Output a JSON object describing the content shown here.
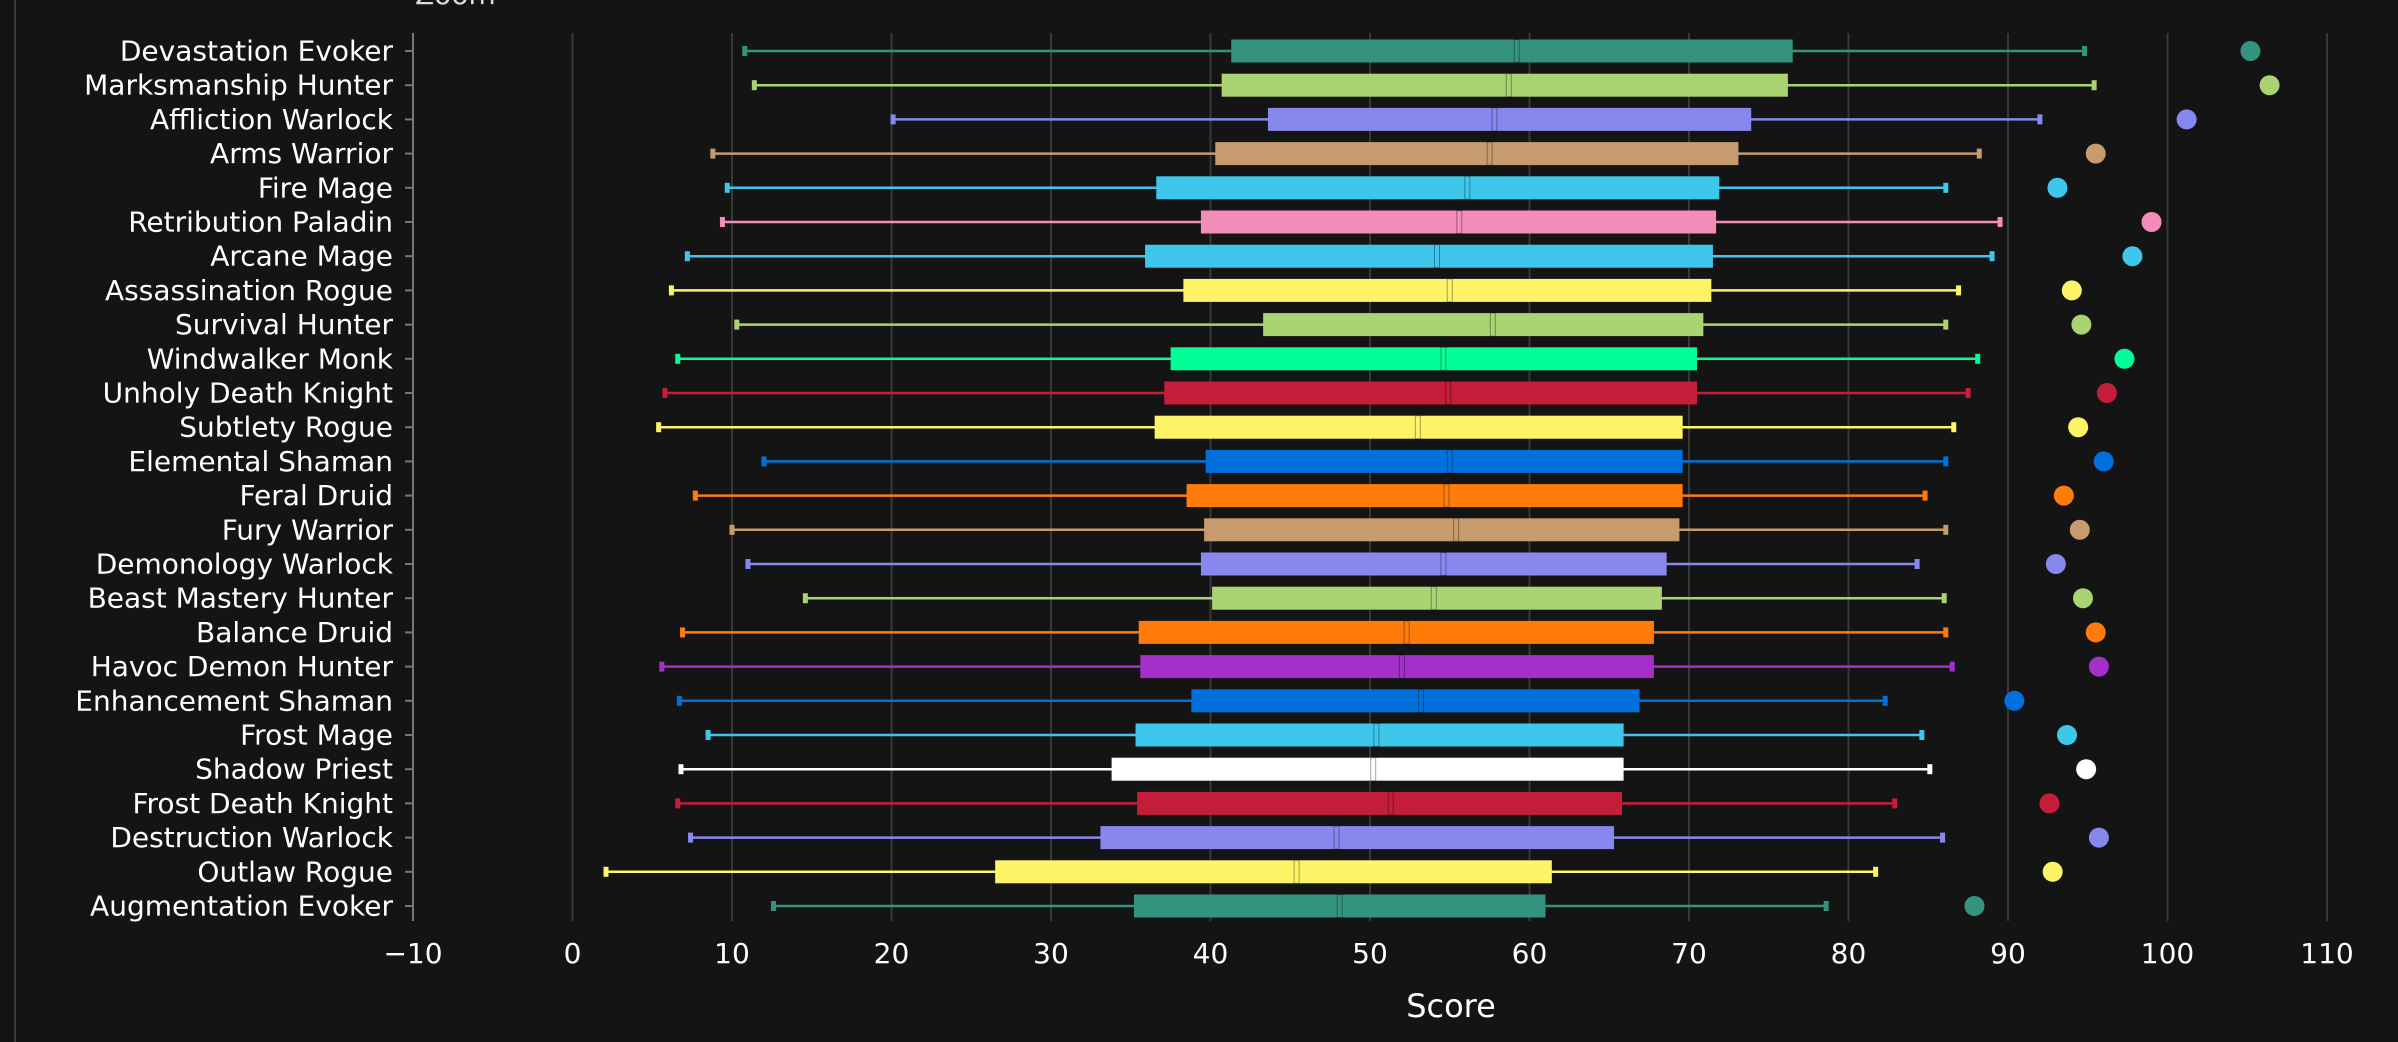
{
  "title": "Zoom",
  "colors": {
    "background": "#141414",
    "grid": "#383838",
    "axis": "#777777"
  },
  "chart_data": {
    "type": "box",
    "orientation": "horizontal",
    "xlabel": "Score",
    "ylabel": "",
    "xlim": [
      -10,
      110
    ],
    "xticks": [
      -10,
      0,
      10,
      20,
      30,
      40,
      50,
      60,
      70,
      80,
      90,
      100,
      110
    ],
    "xtick_labels": [
      "−10",
      "0",
      "10",
      "20",
      "30",
      "40",
      "50",
      "60",
      "70",
      "80",
      "90",
      "100",
      "110"
    ],
    "grid": "vertical",
    "categories": [
      "Devastation Evoker",
      "Marksmanship Hunter",
      "Affliction Warlock",
      "Arms Warrior",
      "Fire Mage",
      "Retribution Paladin",
      "Arcane Mage",
      "Assassination Rogue",
      "Survival Hunter",
      "Windwalker Monk",
      "Unholy Death Knight",
      "Subtlety Rogue",
      "Elemental Shaman",
      "Feral Druid",
      "Fury Warrior",
      "Demonology Warlock",
      "Beast Mastery Hunter",
      "Balance Druid",
      "Havoc Demon Hunter",
      "Enhancement Shaman",
      "Frost Mage",
      "Shadow Priest",
      "Frost Death Knight",
      "Destruction Warlock",
      "Outlaw Rogue",
      "Augmentation Evoker"
    ],
    "series": [
      {
        "min": 10.8,
        "q1": 41.3,
        "median": 59.2,
        "q3": 76.5,
        "max": 94.8,
        "max_point": 105.2,
        "color": "#33937f"
      },
      {
        "min": 11.4,
        "q1": 40.7,
        "median": 58.7,
        "q3": 76.2,
        "max": 95.4,
        "max_point": 106.4,
        "color": "#aad372"
      },
      {
        "min": 20.1,
        "q1": 43.6,
        "median": 57.8,
        "q3": 73.9,
        "max": 92.0,
        "max_point": 101.2,
        "color": "#8788ee"
      },
      {
        "min": 8.8,
        "q1": 40.3,
        "median": 57.5,
        "q3": 73.1,
        "max": 88.2,
        "max_point": 95.5,
        "color": "#c69b6d"
      },
      {
        "min": 9.7,
        "q1": 36.6,
        "median": 56.1,
        "q3": 71.9,
        "max": 86.1,
        "max_point": 93.1,
        "color": "#3fc7eb"
      },
      {
        "min": 9.4,
        "q1": 39.4,
        "median": 55.6,
        "q3": 71.7,
        "max": 89.5,
        "max_point": 99.0,
        "color": "#f48cba"
      },
      {
        "min": 7.2,
        "q1": 35.9,
        "median": 54.2,
        "q3": 71.5,
        "max": 89.0,
        "max_point": 97.8,
        "color": "#3fc7eb"
      },
      {
        "min": 6.2,
        "q1": 38.3,
        "median": 55.0,
        "q3": 71.4,
        "max": 86.9,
        "max_point": 94.0,
        "color": "#fff468"
      },
      {
        "min": 10.3,
        "q1": 43.3,
        "median": 57.7,
        "q3": 70.9,
        "max": 86.1,
        "max_point": 94.6,
        "color": "#aad372"
      },
      {
        "min": 6.6,
        "q1": 37.5,
        "median": 54.6,
        "q3": 70.5,
        "max": 88.1,
        "max_point": 97.3,
        "color": "#00ff98"
      },
      {
        "min": 5.8,
        "q1": 37.1,
        "median": 54.9,
        "q3": 70.5,
        "max": 87.5,
        "max_point": 96.2,
        "color": "#c41e3a"
      },
      {
        "min": 5.4,
        "q1": 36.5,
        "median": 53.0,
        "q3": 69.6,
        "max": 86.6,
        "max_point": 94.4,
        "color": "#fff468"
      },
      {
        "min": 12.0,
        "q1": 39.7,
        "median": 55.0,
        "q3": 69.6,
        "max": 86.1,
        "max_point": 96.0,
        "color": "#0070dd"
      },
      {
        "min": 7.7,
        "q1": 38.5,
        "median": 54.8,
        "q3": 69.6,
        "max": 84.8,
        "max_point": 93.5,
        "color": "#ff7c0a"
      },
      {
        "min": 10.0,
        "q1": 39.6,
        "median": 55.4,
        "q3": 69.4,
        "max": 86.1,
        "max_point": 94.5,
        "color": "#c69b6d"
      },
      {
        "min": 11.0,
        "q1": 39.4,
        "median": 54.6,
        "q3": 68.6,
        "max": 84.3,
        "max_point": 93.0,
        "color": "#8788ee"
      },
      {
        "min": 14.6,
        "q1": 40.1,
        "median": 54.0,
        "q3": 68.3,
        "max": 86.0,
        "max_point": 94.7,
        "color": "#aad372"
      },
      {
        "min": 6.9,
        "q1": 35.5,
        "median": 52.3,
        "q3": 67.8,
        "max": 86.1,
        "max_point": 95.5,
        "color": "#ff7c0a"
      },
      {
        "min": 5.6,
        "q1": 35.6,
        "median": 52.0,
        "q3": 67.8,
        "max": 86.5,
        "max_point": 95.7,
        "color": "#a330c9"
      },
      {
        "min": 6.7,
        "q1": 38.8,
        "median": 53.2,
        "q3": 66.9,
        "max": 82.3,
        "max_point": 90.4,
        "color": "#0070dd"
      },
      {
        "min": 8.5,
        "q1": 35.3,
        "median": 50.4,
        "q3": 65.9,
        "max": 84.6,
        "max_point": 93.7,
        "color": "#3fc7eb"
      },
      {
        "min": 6.8,
        "q1": 33.8,
        "median": 50.2,
        "q3": 65.9,
        "max": 85.1,
        "max_point": 94.9,
        "color": "#ffffff"
      },
      {
        "min": 6.6,
        "q1": 35.4,
        "median": 51.3,
        "q3": 65.8,
        "max": 82.9,
        "max_point": 92.6,
        "color": "#c41e3a"
      },
      {
        "min": 7.4,
        "q1": 33.1,
        "median": 47.9,
        "q3": 65.3,
        "max": 85.9,
        "max_point": 95.7,
        "color": "#8788ee"
      },
      {
        "min": 2.1,
        "q1": 26.5,
        "median": 45.4,
        "q3": 61.4,
        "max": 81.7,
        "max_point": 92.8,
        "color": "#fff468"
      },
      {
        "min": 12.6,
        "q1": 35.2,
        "median": 48.1,
        "q3": 61.0,
        "max": 78.6,
        "max_point": 87.9,
        "color": "#33937f"
      }
    ]
  }
}
